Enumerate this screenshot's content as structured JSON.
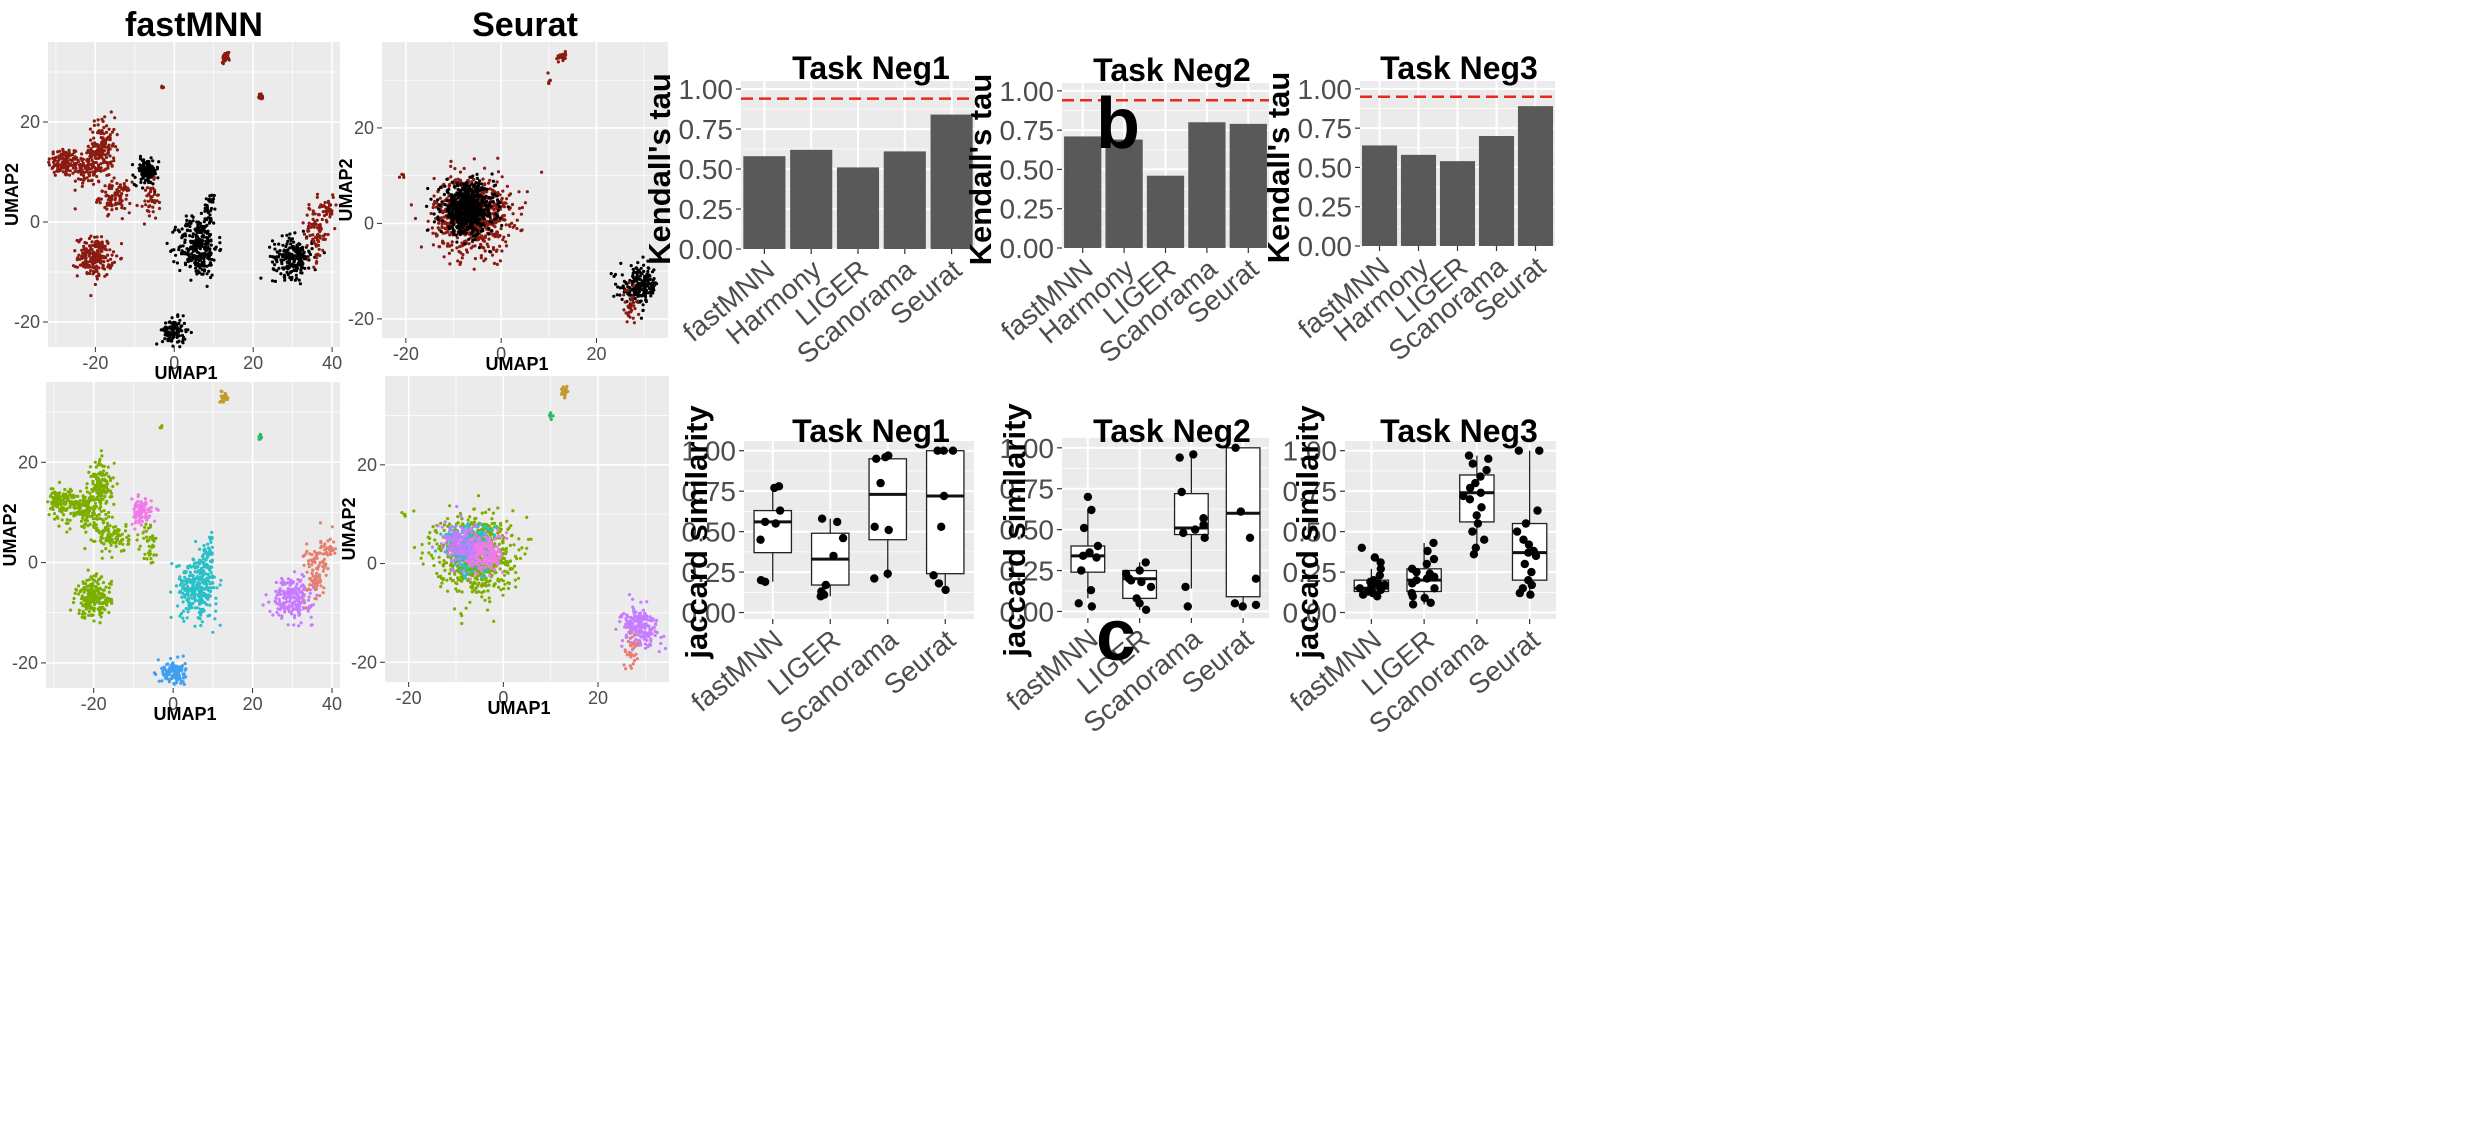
{
  "panel_letters": {
    "b": "b",
    "c": "c"
  },
  "colors": {
    "panel_bg": "#ebebeb",
    "grid": "#ffffff",
    "bar_fill": "#595959",
    "ref_line": "#e8291c",
    "batch_red": "#8b1a10",
    "batch_black": "#000000",
    "cluster": [
      "#7cae00",
      "#f07ae8",
      "#29c0c8",
      "#c77cff",
      "#e58070",
      "#3fa0f0",
      "#c39a2e",
      "#2cba6a"
    ]
  },
  "chart_data": [
    {
      "id": "umap-fastmnn-batch",
      "type": "scatter",
      "title": "fastMNN",
      "xlabel": "UMAP1",
      "ylabel": "UMAP2",
      "xlim": [
        -32,
        42
      ],
      "ylim": [
        -25,
        36
      ],
      "xticks": [
        -20,
        0,
        20,
        40
      ],
      "yticks": [
        -20,
        0,
        20
      ],
      "color_by": "batch",
      "clusters": [
        {
          "x": -28,
          "y": 12,
          "sx": 2.0,
          "sy": 1.5,
          "n": 120,
          "color": "batch_red"
        },
        {
          "x": -22,
          "y": 11,
          "sx": 2.0,
          "sy": 2.0,
          "n": 120,
          "color": "batch_red"
        },
        {
          "x": -18,
          "y": 15,
          "sx": 1.5,
          "sy": 3.0,
          "n": 130,
          "color": "batch_red"
        },
        {
          "x": -15,
          "y": 5,
          "sx": 2.0,
          "sy": 1.5,
          "n": 100,
          "color": "batch_red"
        },
        {
          "x": -20,
          "y": -7,
          "sx": 2.2,
          "sy": 2.0,
          "n": 200,
          "color": "batch_red"
        },
        {
          "x": -7,
          "y": 10,
          "sx": 1.5,
          "sy": 1.3,
          "n": 110,
          "color": "batch_black"
        },
        {
          "x": -6,
          "y": 4,
          "sx": 1.0,
          "sy": 2.0,
          "n": 40,
          "color": "batch_red"
        },
        {
          "x": 6,
          "y": -5,
          "sx": 2.5,
          "sy": 3.0,
          "n": 280,
          "color": "batch_black"
        },
        {
          "x": 9,
          "y": 2,
          "sx": 0.8,
          "sy": 2.0,
          "n": 40,
          "color": "batch_black"
        },
        {
          "x": 30,
          "y": -7,
          "sx": 2.5,
          "sy": 2.0,
          "n": 220,
          "color": "batch_black"
        },
        {
          "x": 36,
          "y": -2,
          "sx": 1.5,
          "sy": 3.0,
          "n": 90,
          "color": "batch_red"
        },
        {
          "x": 39,
          "y": 3,
          "sx": 0.8,
          "sy": 1.5,
          "n": 30,
          "color": "batch_red"
        },
        {
          "x": 0,
          "y": -22,
          "sx": 1.5,
          "sy": 1.3,
          "n": 110,
          "color": "batch_black"
        },
        {
          "x": 13,
          "y": 33,
          "sx": 0.5,
          "sy": 0.5,
          "n": 30,
          "color": "batch_red"
        },
        {
          "x": 22,
          "y": 25,
          "sx": 0.3,
          "sy": 0.4,
          "n": 12,
          "color": "batch_red"
        },
        {
          "x": -3,
          "y": 27,
          "sx": 0.2,
          "sy": 0.2,
          "n": 4,
          "color": "batch_red"
        }
      ]
    },
    {
      "id": "umap-seurat-batch",
      "type": "scatter",
      "title": "Seurat",
      "xlabel": "UMAP1",
      "ylabel": "UMAP2",
      "xlim": [
        -25,
        35
      ],
      "ylim": [
        -24,
        38
      ],
      "xticks": [
        -20,
        0,
        20
      ],
      "yticks": [
        -20,
        0,
        20
      ],
      "color_by": "batch",
      "clusters": [
        {
          "x": -6,
          "y": 2,
          "sx": 4.0,
          "sy": 4.0,
          "n": 700,
          "color": "batch_red"
        },
        {
          "x": -7,
          "y": 3,
          "sx": 2.8,
          "sy": 2.6,
          "n": 650,
          "color": "batch_black"
        },
        {
          "x": 29,
          "y": -13,
          "sx": 2.0,
          "sy": 2.0,
          "n": 200,
          "color": "batch_black"
        },
        {
          "x": 27,
          "y": -18,
          "sx": 0.7,
          "sy": 2.0,
          "n": 30,
          "color": "batch_red"
        },
        {
          "x": 13,
          "y": 35,
          "sx": 0.4,
          "sy": 0.5,
          "n": 20,
          "color": "batch_red"
        },
        {
          "x": 10,
          "y": 30,
          "sx": 0.2,
          "sy": 0.5,
          "n": 6,
          "color": "batch_red"
        },
        {
          "x": -21,
          "y": 10,
          "sx": 0.3,
          "sy": 0.3,
          "n": 4,
          "color": "batch_red"
        }
      ]
    },
    {
      "id": "umap-fastmnn-cluster",
      "type": "scatter",
      "title": "",
      "xlabel": "UMAP1",
      "ylabel": "UMAP2",
      "xlim": [
        -32,
        42
      ],
      "ylim": [
        -25,
        36
      ],
      "xticks": [
        -20,
        0,
        20,
        40
      ],
      "yticks": [
        -20,
        0,
        20
      ],
      "color_by": "cluster",
      "clusters": [
        {
          "x": -28,
          "y": 12,
          "sx": 2.0,
          "sy": 1.5,
          "n": 120,
          "color": 0
        },
        {
          "x": -22,
          "y": 11,
          "sx": 2.0,
          "sy": 2.0,
          "n": 120,
          "color": 0
        },
        {
          "x": -18,
          "y": 15,
          "sx": 1.5,
          "sy": 3.0,
          "n": 130,
          "color": 0
        },
        {
          "x": -15,
          "y": 5,
          "sx": 2.0,
          "sy": 1.5,
          "n": 100,
          "color": 0
        },
        {
          "x": -20,
          "y": -7,
          "sx": 2.2,
          "sy": 2.0,
          "n": 200,
          "color": 0
        },
        {
          "x": -8,
          "y": 10,
          "sx": 1.3,
          "sy": 1.3,
          "n": 90,
          "color": 1
        },
        {
          "x": -6,
          "y": 4,
          "sx": 1.0,
          "sy": 2.0,
          "n": 40,
          "color": 0
        },
        {
          "x": 6,
          "y": -5,
          "sx": 2.5,
          "sy": 3.0,
          "n": 280,
          "color": 2
        },
        {
          "x": 9,
          "y": 2,
          "sx": 0.8,
          "sy": 2.0,
          "n": 40,
          "color": 2
        },
        {
          "x": 30,
          "y": -7,
          "sx": 2.5,
          "sy": 2.0,
          "n": 220,
          "color": 3
        },
        {
          "x": 36,
          "y": -2,
          "sx": 1.5,
          "sy": 3.0,
          "n": 90,
          "color": 4
        },
        {
          "x": 39,
          "y": 3,
          "sx": 0.8,
          "sy": 1.5,
          "n": 30,
          "color": 4
        },
        {
          "x": 0,
          "y": -22,
          "sx": 1.5,
          "sy": 1.3,
          "n": 110,
          "color": 5
        },
        {
          "x": 13,
          "y": 33,
          "sx": 0.5,
          "sy": 0.5,
          "n": 30,
          "color": 6
        },
        {
          "x": 22,
          "y": 25,
          "sx": 0.3,
          "sy": 0.4,
          "n": 12,
          "color": 7
        },
        {
          "x": -3,
          "y": 27,
          "sx": 0.2,
          "sy": 0.2,
          "n": 4,
          "color": 0
        }
      ]
    },
    {
      "id": "umap-seurat-cluster",
      "type": "scatter",
      "title": "",
      "xlabel": "UMAP1",
      "ylabel": "UMAP2",
      "xlim": [
        -25,
        35
      ],
      "ylim": [
        -24,
        38
      ],
      "xticks": [
        -20,
        0,
        20
      ],
      "yticks": [
        -20,
        0,
        20
      ],
      "color_by": "cluster",
      "clusters": [
        {
          "x": -6,
          "y": 2,
          "sx": 4.0,
          "sy": 4.0,
          "n": 700,
          "color": 0
        },
        {
          "x": -7,
          "y": 3,
          "sx": 2.5,
          "sy": 2.5,
          "n": 250,
          "color": 2
        },
        {
          "x": -4,
          "y": 2,
          "sx": 2.0,
          "sy": 2.0,
          "n": 200,
          "color": 1
        },
        {
          "x": -9,
          "y": 4,
          "sx": 2.0,
          "sy": 2.0,
          "n": 150,
          "color": 3
        },
        {
          "x": 29,
          "y": -13,
          "sx": 2.0,
          "sy": 2.0,
          "n": 200,
          "color": 3
        },
        {
          "x": 27,
          "y": -18,
          "sx": 0.7,
          "sy": 2.0,
          "n": 30,
          "color": 4
        },
        {
          "x": 13,
          "y": 35,
          "sx": 0.4,
          "sy": 0.5,
          "n": 20,
          "color": 6
        },
        {
          "x": 10,
          "y": 30,
          "sx": 0.2,
          "sy": 0.5,
          "n": 6,
          "color": 7
        },
        {
          "x": -21,
          "y": 10,
          "sx": 0.3,
          "sy": 0.3,
          "n": 4,
          "color": 0
        }
      ]
    },
    {
      "id": "bar-neg1",
      "type": "bar",
      "title": "Task Neg1",
      "xlabel": "",
      "ylabel": "Kendall's tau",
      "categories": [
        "fastMNN",
        "Harmony",
        "LIGER",
        "Scanorama",
        "Seurat"
      ],
      "values": [
        0.58,
        0.62,
        0.51,
        0.61,
        0.84
      ],
      "reference_line": 0.94,
      "ylim": [
        0,
        1.05
      ],
      "yticks": [
        "0.00",
        "0.25",
        "0.50",
        "0.75",
        "1.00"
      ]
    },
    {
      "id": "bar-neg2",
      "type": "bar",
      "title": "Task Neg2",
      "xlabel": "",
      "ylabel": "Kendall's tau",
      "categories": [
        "fastMNN",
        "Harmony",
        "LIGER",
        "Scanorama",
        "Seurat"
      ],
      "values": [
        0.71,
        0.69,
        0.46,
        0.8,
        0.79
      ],
      "reference_line": 0.94,
      "ylim": [
        0,
        1.05
      ],
      "yticks": [
        "0.00",
        "0.25",
        "0.50",
        "0.75",
        "1.00"
      ]
    },
    {
      "id": "bar-neg3",
      "type": "bar",
      "title": "Task Neg3",
      "xlabel": "",
      "ylabel": "Kendall's tau",
      "categories": [
        "fastMNN",
        "Harmony",
        "LIGER",
        "Scanorama",
        "Seurat"
      ],
      "values": [
        0.64,
        0.58,
        0.54,
        0.7,
        0.89
      ],
      "reference_line": 0.95,
      "ylim": [
        0,
        1.05
      ],
      "yticks": [
        "0.00",
        "0.25",
        "0.50",
        "0.75",
        "1.00"
      ]
    },
    {
      "id": "box-neg1",
      "type": "box",
      "title": "Task Neg1",
      "xlabel": "",
      "ylabel": "jaccard similarity",
      "categories": [
        "fastMNN",
        "LIGER",
        "Scanorama",
        "Seurat"
      ],
      "ylim": [
        -0.04,
        1.06
      ],
      "yticks": [
        "0.00",
        "0.25",
        "0.50",
        "0.75",
        "1.00"
      ],
      "boxes": [
        {
          "min": 0.19,
          "q1": 0.37,
          "median": 0.56,
          "q3": 0.63,
          "max": 0.78
        },
        {
          "min": 0.1,
          "q1": 0.17,
          "median": 0.33,
          "q3": 0.49,
          "max": 0.58
        },
        {
          "min": 0.21,
          "q1": 0.45,
          "median": 0.73,
          "q3": 0.95,
          "max": 0.97
        },
        {
          "min": 0.14,
          "q1": 0.24,
          "median": 0.72,
          "q3": 1.0,
          "max": 1.0
        }
      ],
      "points": [
        [
          0.78,
          0.77,
          0.63,
          0.56,
          0.55,
          0.45,
          0.2,
          0.19
        ],
        [
          0.58,
          0.56,
          0.46,
          0.35,
          0.17,
          0.13,
          0.11,
          0.1
        ],
        [
          0.97,
          0.96,
          0.95,
          0.8,
          0.53,
          0.51,
          0.24,
          0.21
        ],
        [
          1.0,
          1.0,
          1.0,
          0.72,
          0.53,
          0.23,
          0.18,
          0.14
        ]
      ]
    },
    {
      "id": "box-neg2",
      "type": "box",
      "title": "Task Neg2",
      "xlabel": "",
      "ylabel": "jaccard similarity",
      "categories": [
        "fastMNN",
        "LIGER",
        "Scanorama",
        "Seurat"
      ],
      "ylim": [
        -0.04,
        1.06
      ],
      "yticks": [
        "0.00",
        "0.25",
        "0.50",
        "0.75",
        "1.00"
      ],
      "boxes": [
        {
          "min": 0.08,
          "q1": 0.24,
          "median": 0.34,
          "q3": 0.4,
          "max": 0.62
        },
        {
          "min": 0.01,
          "q1": 0.08,
          "median": 0.2,
          "q3": 0.25,
          "max": 0.3
        },
        {
          "min": 0.14,
          "q1": 0.47,
          "median": 0.51,
          "q3": 0.72,
          "max": 0.96
        },
        {
          "min": 0.03,
          "q1": 0.09,
          "median": 0.6,
          "q3": 1.0,
          "max": 1.0
        }
      ],
      "points": [
        [
          0.7,
          0.62,
          0.51,
          0.4,
          0.36,
          0.34,
          0.33,
          0.25,
          0.13,
          0.05,
          0.03
        ],
        [
          0.3,
          0.25,
          0.23,
          0.2,
          0.19,
          0.18,
          0.15,
          0.08,
          0.05,
          0.01
        ],
        [
          0.96,
          0.94,
          0.73,
          0.57,
          0.53,
          0.5,
          0.48,
          0.45,
          0.15,
          0.03
        ],
        [
          1.0,
          0.61,
          0.45,
          0.2,
          0.05,
          0.04,
          0.03
        ]
      ]
    },
    {
      "id": "box-neg3",
      "type": "box",
      "title": "Task Neg3",
      "xlabel": "",
      "ylabel": "jaccard similarity",
      "categories": [
        "fastMNN",
        "LIGER",
        "Scanorama",
        "Seurat"
      ],
      "ylim": [
        -0.04,
        1.06
      ],
      "yticks": [
        "0.00",
        "0.25",
        "0.50",
        "0.75",
        "1.00"
      ],
      "boxes": [
        {
          "min": 0.1,
          "q1": 0.13,
          "median": 0.15,
          "q3": 0.2,
          "max": 0.27
        },
        {
          "min": 0.05,
          "q1": 0.13,
          "median": 0.2,
          "q3": 0.27,
          "max": 0.43
        },
        {
          "min": 0.36,
          "q1": 0.56,
          "median": 0.74,
          "q3": 0.85,
          "max": 0.97
        },
        {
          "min": 0.11,
          "q1": 0.2,
          "median": 0.37,
          "q3": 0.55,
          "max": 1.0
        }
      ],
      "points": [
        [
          0.4,
          0.34,
          0.31,
          0.27,
          0.23,
          0.2,
          0.19,
          0.17,
          0.16,
          0.15,
          0.14,
          0.13,
          0.12,
          0.11,
          0.1,
          0.14,
          0.18
        ],
        [
          0.43,
          0.38,
          0.33,
          0.3,
          0.27,
          0.25,
          0.22,
          0.21,
          0.2,
          0.18,
          0.15,
          0.12,
          0.09,
          0.06,
          0.05,
          0.1,
          0.24
        ],
        [
          0.97,
          0.95,
          0.92,
          0.88,
          0.84,
          0.8,
          0.77,
          0.74,
          0.72,
          0.7,
          0.65,
          0.6,
          0.55,
          0.5,
          0.45,
          0.4,
          0.36
        ],
        [
          1.0,
          1.0,
          0.63,
          0.55,
          0.5,
          0.45,
          0.42,
          0.38,
          0.37,
          0.35,
          0.3,
          0.25,
          0.2,
          0.17,
          0.15,
          0.12,
          0.11
        ]
      ]
    }
  ]
}
